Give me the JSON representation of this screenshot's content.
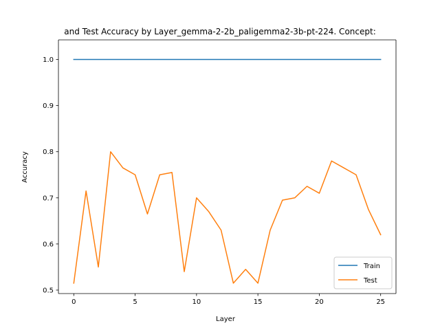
{
  "chart_data": {
    "type": "line",
    "title": "and Test Accuracy by Layer_gemma-2-2b_paligemma2-3b-pt-224. Concept:",
    "xlabel": "Layer",
    "ylabel": "Accuracy",
    "xlim": [
      -1.25,
      26.25
    ],
    "ylim": [
      0.4925,
      1.0425
    ],
    "xticks": [
      0,
      5,
      10,
      15,
      20,
      25
    ],
    "yticks": [
      0.5,
      0.6,
      0.7,
      0.8,
      0.9,
      1.0
    ],
    "ytick_labels": [
      "0.5",
      "0.6",
      "0.7",
      "0.8",
      "0.9",
      "1.0"
    ],
    "grid": false,
    "legend_position": "lower-right",
    "x": [
      0,
      1,
      2,
      3,
      4,
      5,
      6,
      7,
      8,
      9,
      10,
      11,
      12,
      13,
      14,
      15,
      16,
      17,
      18,
      19,
      20,
      21,
      22,
      23,
      24,
      25
    ],
    "series": [
      {
        "name": "Train",
        "color": "#1f77b4",
        "values": [
          1.0,
          1.0,
          1.0,
          1.0,
          1.0,
          1.0,
          1.0,
          1.0,
          1.0,
          1.0,
          1.0,
          1.0,
          1.0,
          1.0,
          1.0,
          1.0,
          1.0,
          1.0,
          1.0,
          1.0,
          1.0,
          1.0,
          1.0,
          1.0,
          1.0,
          1.0
        ]
      },
      {
        "name": "Test",
        "color": "#ff7f0e",
        "values": [
          0.515,
          0.715,
          0.55,
          0.8,
          0.765,
          0.75,
          0.665,
          0.75,
          0.755,
          0.54,
          0.7,
          0.67,
          0.63,
          0.515,
          0.545,
          0.515,
          0.63,
          0.695,
          0.7,
          0.725,
          0.71,
          0.78,
          0.765,
          0.75,
          0.675,
          0.62
        ]
      }
    ]
  }
}
